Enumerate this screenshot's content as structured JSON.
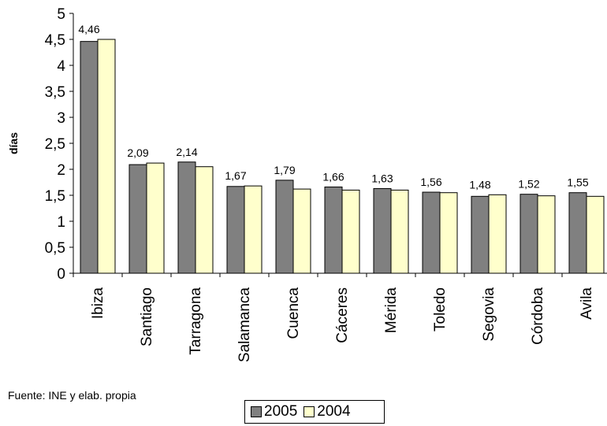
{
  "chart_data": {
    "type": "bar",
    "title": "",
    "xlabel": "",
    "ylabel": "días",
    "ylim": [
      0,
      5
    ],
    "yticks": [
      "0",
      "0,5",
      "1",
      "1,5",
      "2",
      "2,5",
      "3",
      "3,5",
      "4",
      "4,5",
      "5"
    ],
    "grid": false,
    "legend_position": "bottom",
    "categories": [
      "Ibiza",
      "Santiago",
      "Tarragona",
      "Salamanca",
      "Cuenca",
      "Cáceres",
      "Mérida",
      "Toledo",
      "Segovia",
      "Córdoba",
      "Avila"
    ],
    "series": [
      {
        "name": "2005",
        "color": "#808080",
        "values": [
          4.46,
          2.09,
          2.14,
          1.67,
          1.79,
          1.66,
          1.63,
          1.56,
          1.48,
          1.52,
          1.55
        ],
        "labels": [
          "4,46",
          "2,09",
          "2,14",
          "1,67",
          "1,79",
          "1,66",
          "1,63",
          "1,56",
          "1,48",
          "1,52",
          "1,55"
        ]
      },
      {
        "name": "2004",
        "color": "#ffffcc",
        "values": [
          4.5,
          2.12,
          2.05,
          1.68,
          1.62,
          1.6,
          1.6,
          1.55,
          1.51,
          1.49,
          1.48
        ]
      }
    ]
  },
  "source_note": "Fuente: INE y elab. propia"
}
